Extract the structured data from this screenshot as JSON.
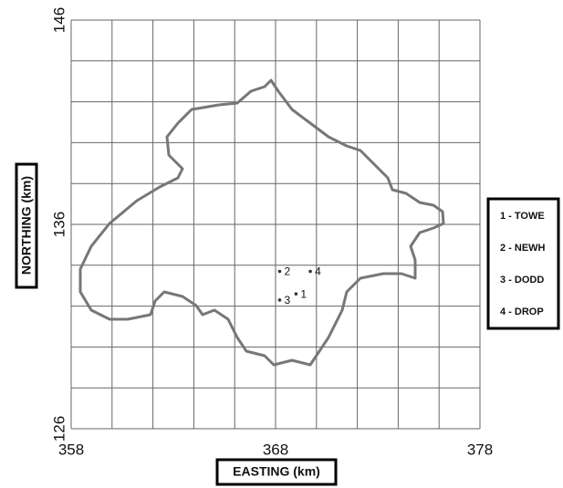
{
  "chart_data": {
    "type": "scatter",
    "x_label": "EASTING (km)",
    "y_label": "NORTHING (km)",
    "x": [
      369.0,
      368.2,
      368.2,
      369.7
    ],
    "values": [
      132.6,
      133.7,
      132.3,
      133.7
    ],
    "point_labels": [
      "1",
      "2",
      "3",
      "4"
    ],
    "legend": [
      "1 - TOWE",
      "2 - NEWH",
      "3 - DODD",
      "4 - DROP"
    ],
    "xlim": [
      358,
      378
    ],
    "ylim": [
      126,
      146
    ],
    "xticks": [
      358,
      368,
      378
    ],
    "yticks": [
      126,
      136,
      146
    ],
    "x_grid": [
      360,
      362,
      364,
      366,
      370,
      372,
      374,
      376
    ],
    "y_grid": [
      128,
      130,
      132,
      134,
      138,
      140,
      142,
      144
    ],
    "grid": true,
    "color": "#333333",
    "legend_position": "right"
  }
}
